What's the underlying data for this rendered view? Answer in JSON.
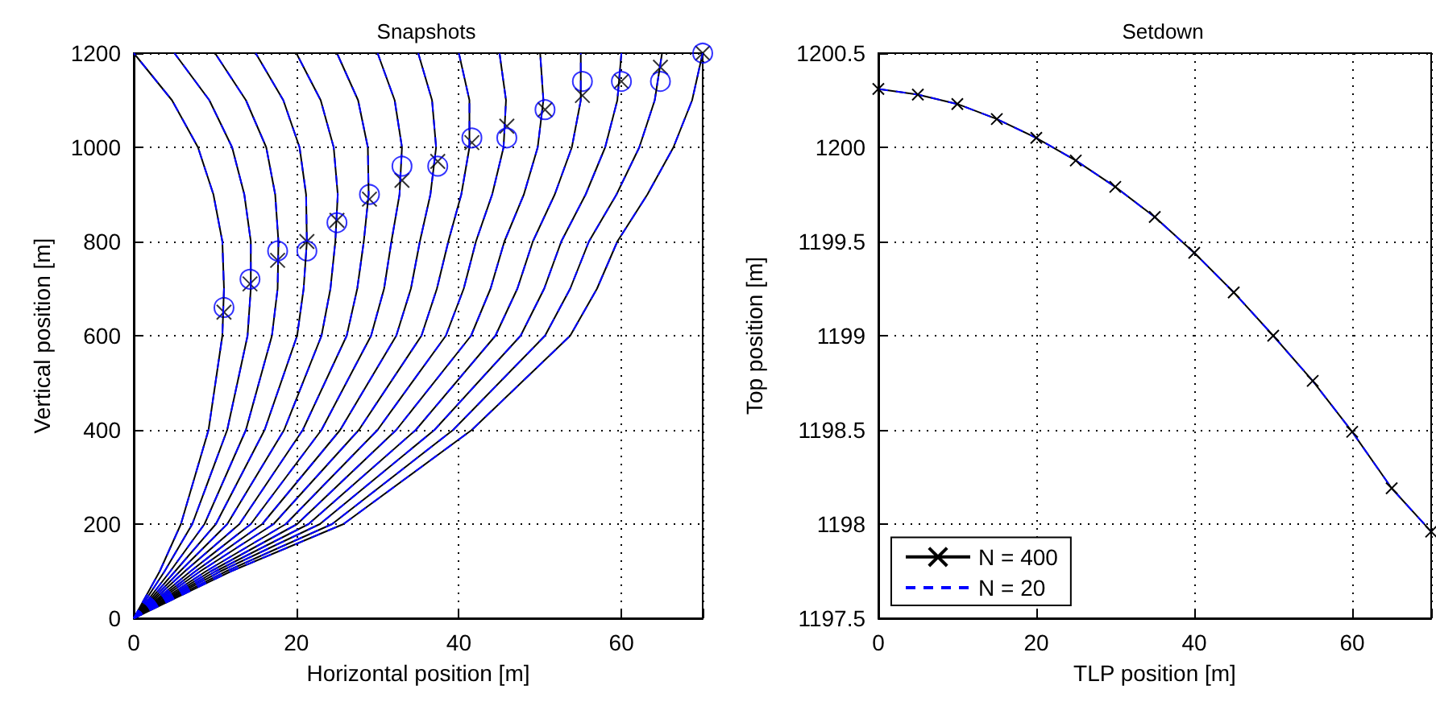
{
  "chart_data": [
    {
      "type": "line",
      "title": "Snapshots",
      "xlabel": "Horizontal position [m]",
      "ylabel": "Vertical position [m]",
      "xlim": [
        0,
        70
      ],
      "xticks": [
        0,
        20,
        40,
        60
      ],
      "ylim": [
        0,
        1200
      ],
      "yticks": [
        0,
        200,
        400,
        600,
        800,
        1000,
        1200
      ],
      "grid": true,
      "legend": false,
      "series": [
        {
          "color": "#000000",
          "line_style": "solid",
          "marker": "none",
          "x": [
            0,
            3.2,
            5.8,
            9.2,
            10.9,
            11.1,
            10.9,
            9.8,
            7.9,
            4.7,
            0
          ],
          "values": [
            0,
            100,
            200,
            400,
            600,
            700,
            800,
            900,
            1000,
            1100,
            1200
          ]
        },
        {
          "color": "#000000",
          "line_style": "solid",
          "marker": "none",
          "x": [
            0,
            3.8,
            7.2,
            11.5,
            14.0,
            14.4,
            14.4,
            13.6,
            12.1,
            9.3,
            5
          ],
          "values": [
            0,
            100,
            200,
            400,
            600,
            700,
            800,
            900,
            1000,
            1100,
            1200
          ]
        },
        {
          "color": "#000000",
          "line_style": "solid",
          "marker": "none",
          "x": [
            0,
            4.5,
            8.7,
            13.8,
            17.0,
            17.7,
            17.8,
            17.4,
            16.3,
            13.8,
            10
          ],
          "values": [
            0,
            100,
            200,
            400,
            600,
            700,
            800,
            900,
            1000,
            1100,
            1200
          ]
        },
        {
          "color": "#000000",
          "line_style": "solid",
          "marker": "none",
          "x": [
            0,
            5.1,
            10.1,
            16.1,
            20.1,
            20.9,
            21.3,
            21.2,
            20.4,
            18.4,
            15
          ],
          "values": [
            0,
            100,
            200,
            400,
            600,
            700,
            800,
            900,
            1000,
            1100,
            1200
          ]
        },
        {
          "color": "#000000",
          "line_style": "solid",
          "marker": "none",
          "x": [
            0,
            5.7,
            11.5,
            18.5,
            23.1,
            24.2,
            24.8,
            25.1,
            24.6,
            23.0,
            20
          ],
          "values": [
            0,
            100,
            200,
            400,
            600,
            700,
            800,
            900,
            1000,
            1100,
            1200
          ]
        },
        {
          "color": "#000000",
          "line_style": "solid",
          "marker": "none",
          "x": [
            0,
            6.3,
            13.0,
            20.8,
            26.2,
            27.5,
            28.3,
            28.9,
            28.8,
            27.6,
            25
          ],
          "values": [
            0,
            100,
            200,
            400,
            600,
            700,
            800,
            900,
            1000,
            1100,
            1200
          ]
        },
        {
          "color": "#000000",
          "line_style": "solid",
          "marker": "none",
          "x": [
            0,
            7.0,
            14.4,
            23.1,
            29.2,
            30.8,
            31.7,
            32.7,
            33.0,
            32.1,
            30
          ],
          "values": [
            0,
            100,
            200,
            400,
            600,
            700,
            800,
            900,
            1000,
            1100,
            1200
          ]
        },
        {
          "color": "#000000",
          "line_style": "solid",
          "marker": "none",
          "x": [
            0,
            7.6,
            15.8,
            25.4,
            32.3,
            34.1,
            35.2,
            36.5,
            37.2,
            36.7,
            35
          ],
          "values": [
            0,
            100,
            200,
            400,
            600,
            700,
            800,
            900,
            1000,
            1100,
            1200
          ]
        },
        {
          "color": "#000000",
          "line_style": "solid",
          "marker": "none",
          "x": [
            0,
            8.2,
            17.2,
            27.7,
            35.4,
            37.3,
            38.7,
            40.3,
            41.3,
            41.3,
            40
          ],
          "values": [
            0,
            100,
            200,
            400,
            600,
            700,
            800,
            900,
            1000,
            1100,
            1200
          ]
        },
        {
          "color": "#000000",
          "line_style": "solid",
          "marker": "none",
          "x": [
            0,
            8.9,
            18.7,
            30.0,
            38.4,
            40.6,
            42.1,
            44.1,
            45.5,
            45.8,
            45
          ],
          "values": [
            0,
            100,
            200,
            400,
            600,
            700,
            800,
            900,
            1000,
            1100,
            1200
          ]
        },
        {
          "color": "#000000",
          "line_style": "solid",
          "marker": "none",
          "x": [
            0,
            9.5,
            20.1,
            32.3,
            41.5,
            43.9,
            45.6,
            48.0,
            49.7,
            50.4,
            50
          ],
          "values": [
            0,
            100,
            200,
            400,
            600,
            700,
            800,
            900,
            1000,
            1100,
            1200
          ]
        },
        {
          "color": "#000000",
          "line_style": "solid",
          "marker": "none",
          "x": [
            0,
            10.1,
            21.5,
            34.7,
            44.5,
            47.2,
            49.1,
            51.8,
            53.9,
            55.0,
            55
          ],
          "values": [
            0,
            100,
            200,
            400,
            600,
            700,
            800,
            900,
            1000,
            1100,
            1200
          ]
        },
        {
          "color": "#000000",
          "line_style": "solid",
          "marker": "none",
          "x": [
            0,
            10.7,
            22.9,
            37.0,
            47.6,
            50.5,
            52.6,
            55.6,
            58.0,
            59.5,
            60
          ],
          "values": [
            0,
            100,
            200,
            400,
            600,
            700,
            800,
            900,
            1000,
            1100,
            1200
          ]
        },
        {
          "color": "#000000",
          "line_style": "solid",
          "marker": "none",
          "x": [
            0,
            11.4,
            24.4,
            39.3,
            50.6,
            53.7,
            56.0,
            59.4,
            62.2,
            64.1,
            65
          ],
          "values": [
            0,
            100,
            200,
            400,
            600,
            700,
            800,
            900,
            1000,
            1100,
            1200
          ]
        },
        {
          "color": "#000000",
          "line_style": "solid",
          "marker": "none",
          "x": [
            0,
            12,
            25.8,
            41.6,
            53.7,
            57,
            59.5,
            63.2,
            66.4,
            68.7,
            70
          ],
          "values": [
            0,
            100,
            200,
            400,
            600,
            700,
            800,
            900,
            1000,
            1100,
            1200
          ]
        },
        {
          "color": "#0000ff",
          "line_style": "dashed",
          "marker": "none",
          "x": [
            0,
            3.2,
            5.8,
            9.2,
            10.9,
            11.1,
            10.9,
            9.8,
            7.9,
            4.7,
            0
          ],
          "values": [
            0,
            100,
            200,
            400,
            600,
            700,
            800,
            900,
            1000,
            1100,
            1200
          ]
        },
        {
          "color": "#0000ff",
          "line_style": "dashed",
          "marker": "none",
          "x": [
            0,
            3.8,
            7.2,
            11.5,
            14.0,
            14.4,
            14.4,
            13.6,
            12.1,
            9.3,
            5
          ],
          "values": [
            0,
            100,
            200,
            400,
            600,
            700,
            800,
            900,
            1000,
            1100,
            1200
          ]
        },
        {
          "color": "#0000ff",
          "line_style": "dashed",
          "marker": "none",
          "x": [
            0,
            4.5,
            8.7,
            13.8,
            17.0,
            17.7,
            17.8,
            17.4,
            16.3,
            13.8,
            10
          ],
          "values": [
            0,
            100,
            200,
            400,
            600,
            700,
            800,
            900,
            1000,
            1100,
            1200
          ]
        },
        {
          "color": "#0000ff",
          "line_style": "dashed",
          "marker": "none",
          "x": [
            0,
            5.1,
            10.1,
            16.1,
            20.1,
            20.9,
            21.3,
            21.2,
            20.4,
            18.4,
            15
          ],
          "values": [
            0,
            100,
            200,
            400,
            600,
            700,
            800,
            900,
            1000,
            1100,
            1200
          ]
        },
        {
          "color": "#0000ff",
          "line_style": "dashed",
          "marker": "none",
          "x": [
            0,
            5.7,
            11.5,
            18.5,
            23.1,
            24.2,
            24.8,
            25.1,
            24.6,
            23.0,
            20
          ],
          "values": [
            0,
            100,
            200,
            400,
            600,
            700,
            800,
            900,
            1000,
            1100,
            1200
          ]
        },
        {
          "color": "#0000ff",
          "line_style": "dashed",
          "marker": "none",
          "x": [
            0,
            6.3,
            13.0,
            20.8,
            26.2,
            27.5,
            28.3,
            28.9,
            28.8,
            27.6,
            25
          ],
          "values": [
            0,
            100,
            200,
            400,
            600,
            700,
            800,
            900,
            1000,
            1100,
            1200
          ]
        },
        {
          "color": "#0000ff",
          "line_style": "dashed",
          "marker": "none",
          "x": [
            0,
            7.0,
            14.4,
            23.1,
            29.2,
            30.8,
            31.7,
            32.7,
            33.0,
            32.1,
            30
          ],
          "values": [
            0,
            100,
            200,
            400,
            600,
            700,
            800,
            900,
            1000,
            1100,
            1200
          ]
        },
        {
          "color": "#0000ff",
          "line_style": "dashed",
          "marker": "none",
          "x": [
            0,
            7.6,
            15.8,
            25.4,
            32.3,
            34.1,
            35.2,
            36.5,
            37.2,
            36.7,
            35
          ],
          "values": [
            0,
            100,
            200,
            400,
            600,
            700,
            800,
            900,
            1000,
            1100,
            1200
          ]
        },
        {
          "color": "#0000ff",
          "line_style": "dashed",
          "marker": "none",
          "x": [
            0,
            8.2,
            17.2,
            27.7,
            35.4,
            37.3,
            38.7,
            40.3,
            41.3,
            41.3,
            40
          ],
          "values": [
            0,
            100,
            200,
            400,
            600,
            700,
            800,
            900,
            1000,
            1100,
            1200
          ]
        },
        {
          "color": "#0000ff",
          "line_style": "dashed",
          "marker": "none",
          "x": [
            0,
            8.9,
            18.7,
            30.0,
            38.4,
            40.6,
            42.1,
            44.1,
            45.5,
            45.8,
            45
          ],
          "values": [
            0,
            100,
            200,
            400,
            600,
            700,
            800,
            900,
            1000,
            1100,
            1200
          ]
        },
        {
          "color": "#0000ff",
          "line_style": "dashed",
          "marker": "none",
          "x": [
            0,
            9.5,
            20.1,
            32.3,
            41.5,
            43.9,
            45.6,
            48.0,
            49.7,
            50.4,
            50
          ],
          "values": [
            0,
            100,
            200,
            400,
            600,
            700,
            800,
            900,
            1000,
            1100,
            1200
          ]
        },
        {
          "color": "#0000ff",
          "line_style": "dashed",
          "marker": "none",
          "x": [
            0,
            10.1,
            21.5,
            34.7,
            44.5,
            47.2,
            49.1,
            51.8,
            53.9,
            55.0,
            55
          ],
          "values": [
            0,
            100,
            200,
            400,
            600,
            700,
            800,
            900,
            1000,
            1100,
            1200
          ]
        },
        {
          "color": "#0000ff",
          "line_style": "dashed",
          "marker": "none",
          "x": [
            0,
            10.7,
            22.9,
            37.0,
            47.6,
            50.5,
            52.6,
            55.6,
            58.0,
            59.5,
            60
          ],
          "values": [
            0,
            100,
            200,
            400,
            600,
            700,
            800,
            900,
            1000,
            1100,
            1200
          ]
        },
        {
          "color": "#0000ff",
          "line_style": "dashed",
          "marker": "none",
          "x": [
            0,
            11.4,
            24.4,
            39.3,
            50.6,
            53.7,
            56.0,
            59.4,
            62.2,
            64.1,
            65
          ],
          "values": [
            0,
            100,
            200,
            400,
            600,
            700,
            800,
            900,
            1000,
            1100,
            1200
          ]
        },
        {
          "color": "#0000ff",
          "line_style": "dashed",
          "marker": "none",
          "x": [
            0,
            12,
            25.8,
            41.6,
            53.7,
            57,
            59.5,
            63.2,
            66.4,
            68.7,
            70
          ],
          "values": [
            0,
            100,
            200,
            400,
            600,
            700,
            800,
            900,
            1000,
            1100,
            1200
          ]
        },
        {
          "type": "scatter",
          "color": "#000000",
          "marker": "cross",
          "x": [
            11.1,
            14.3,
            17.7,
            21.3,
            25,
            29,
            33,
            37.4,
            41.6,
            45.9,
            50.6,
            55.2,
            60,
            64.8,
            70
          ],
          "values": [
            650,
            710,
            760,
            800,
            845,
            890,
            930,
            970,
            1010,
            1045,
            1080,
            1110,
            1140,
            1170,
            1200
          ]
        },
        {
          "type": "scatter",
          "color": "#0000ff",
          "marker": "circle",
          "x": [
            11.1,
            14.3,
            17.7,
            21.3,
            25,
            29,
            33,
            37.4,
            41.6,
            45.9,
            50.6,
            55.2,
            60,
            64.8,
            70
          ],
          "values": [
            660,
            720,
            780,
            780,
            840,
            900,
            960,
            960,
            1020,
            1020,
            1080,
            1140,
            1140,
            1140,
            1200
          ]
        }
      ]
    },
    {
      "type": "line",
      "title": "Setdown",
      "xlabel": "TLP position [m]",
      "ylabel": "Top position [m]",
      "xlim": [
        0,
        70
      ],
      "xticks": [
        0,
        20,
        40,
        60
      ],
      "ylim": [
        1197.5,
        1200.5
      ],
      "yticks": [
        1197.5,
        1198,
        1198.5,
        1199,
        1199.5,
        1200,
        1200.5
      ],
      "grid": true,
      "legend": "bottom left",
      "x": [
        0,
        5,
        10,
        15,
        20,
        25,
        30,
        35,
        40,
        45,
        50,
        55,
        60,
        65,
        70
      ],
      "series": [
        {
          "name": "N = 400",
          "color": "#000000",
          "line_style": "solid",
          "marker": "cross",
          "values": [
            1200.31,
            1200.28,
            1200.23,
            1200.15,
            1200.05,
            1199.93,
            1199.79,
            1199.63,
            1199.44,
            1199.23,
            1199.0,
            1198.76,
            1198.49,
            1198.19,
            1197.96
          ]
        },
        {
          "name": "N = 20",
          "color": "#0000ff",
          "line_style": "dashed",
          "marker": "none",
          "values": [
            1200.31,
            1200.28,
            1200.23,
            1200.15,
            1200.05,
            1199.93,
            1199.79,
            1199.63,
            1199.44,
            1199.23,
            1199.0,
            1198.76,
            1198.49,
            1198.19,
            1197.96
          ]
        }
      ]
    }
  ]
}
